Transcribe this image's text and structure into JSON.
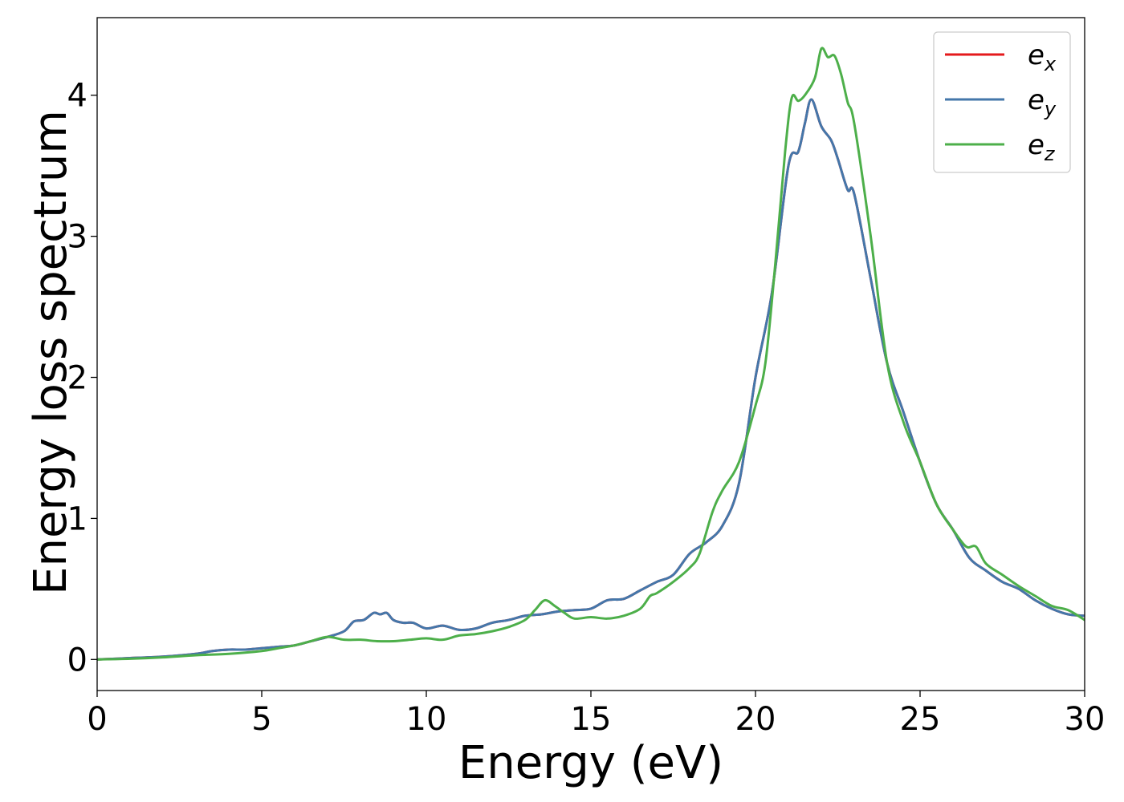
{
  "chart_data": {
    "type": "line",
    "title": "",
    "xlabel": "Energy (eV)",
    "ylabel": "Energy loss spectrum",
    "xlim": [
      0,
      30
    ],
    "ylim": [
      -0.22,
      4.55
    ],
    "xticks": [
      0,
      5,
      10,
      15,
      20,
      25,
      30
    ],
    "xtick_labels": [
      "0",
      "5",
      "10",
      "15",
      "20",
      "25",
      "30"
    ],
    "yticks": [
      0,
      1,
      2,
      3,
      4
    ],
    "ytick_labels": [
      "0",
      "1",
      "2",
      "3",
      "4"
    ],
    "grid": false,
    "legend_position": "top-right",
    "series": [
      {
        "name": "e_x",
        "legend_base": "e",
        "legend_sub": "x",
        "color": "#e41a1c",
        "x": [
          0,
          1,
          2,
          3,
          3.5,
          4,
          4.5,
          5,
          5.5,
          6,
          6.5,
          7,
          7.5,
          7.8,
          8.1,
          8.4,
          8.6,
          8.8,
          9.0,
          9.3,
          9.6,
          10,
          10.5,
          11,
          11.5,
          12,
          12.5,
          13,
          13.5,
          14,
          14.5,
          15,
          15.5,
          16,
          16.5,
          17,
          17.5,
          18,
          18.5,
          19,
          19.5,
          20,
          20.5,
          21,
          21.3,
          21.5,
          21.7,
          22,
          22.3,
          22.5,
          22.8,
          23,
          23.5,
          24,
          24.5,
          25,
          25.5,
          26,
          26.5,
          27,
          27.5,
          28,
          28.5,
          29,
          29.5,
          30
        ],
        "y": [
          0,
          0.01,
          0.02,
          0.04,
          0.06,
          0.07,
          0.07,
          0.08,
          0.09,
          0.1,
          0.13,
          0.16,
          0.2,
          0.27,
          0.28,
          0.33,
          0.32,
          0.33,
          0.28,
          0.26,
          0.26,
          0.22,
          0.24,
          0.21,
          0.22,
          0.26,
          0.28,
          0.31,
          0.32,
          0.34,
          0.35,
          0.36,
          0.42,
          0.43,
          0.49,
          0.55,
          0.6,
          0.75,
          0.83,
          0.95,
          1.25,
          2.0,
          2.6,
          3.5,
          3.6,
          3.8,
          3.97,
          3.78,
          3.68,
          3.55,
          3.33,
          3.3,
          2.7,
          2.1,
          1.75,
          1.4,
          1.1,
          0.92,
          0.72,
          0.63,
          0.55,
          0.5,
          0.42,
          0.36,
          0.32,
          0.31
        ]
      },
      {
        "name": "e_y",
        "legend_base": "e",
        "legend_sub": "y",
        "color": "#4477aa",
        "x": [
          0,
          1,
          2,
          3,
          3.5,
          4,
          4.5,
          5,
          5.5,
          6,
          6.5,
          7,
          7.5,
          7.8,
          8.1,
          8.4,
          8.6,
          8.8,
          9.0,
          9.3,
          9.6,
          10,
          10.5,
          11,
          11.5,
          12,
          12.5,
          13,
          13.5,
          14,
          14.5,
          15,
          15.5,
          16,
          16.5,
          17,
          17.5,
          18,
          18.5,
          19,
          19.5,
          20,
          20.5,
          21,
          21.3,
          21.5,
          21.7,
          22,
          22.3,
          22.5,
          22.8,
          23,
          23.5,
          24,
          24.5,
          25,
          25.5,
          26,
          26.5,
          27,
          27.5,
          28,
          28.5,
          29,
          29.5,
          30
        ],
        "y": [
          0,
          0.01,
          0.02,
          0.04,
          0.06,
          0.07,
          0.07,
          0.08,
          0.09,
          0.1,
          0.13,
          0.16,
          0.2,
          0.27,
          0.28,
          0.33,
          0.32,
          0.33,
          0.28,
          0.26,
          0.26,
          0.22,
          0.24,
          0.21,
          0.22,
          0.26,
          0.28,
          0.31,
          0.32,
          0.34,
          0.35,
          0.36,
          0.42,
          0.43,
          0.49,
          0.55,
          0.6,
          0.75,
          0.83,
          0.95,
          1.25,
          2.0,
          2.6,
          3.5,
          3.6,
          3.8,
          3.97,
          3.78,
          3.68,
          3.55,
          3.33,
          3.3,
          2.7,
          2.1,
          1.75,
          1.4,
          1.1,
          0.92,
          0.72,
          0.63,
          0.55,
          0.5,
          0.42,
          0.36,
          0.32,
          0.31
        ]
      },
      {
        "name": "e_z",
        "legend_base": "e",
        "legend_sub": "z",
        "color": "#4daf4a",
        "x": [
          0,
          1,
          2,
          3,
          4,
          5,
          5.5,
          6,
          6.5,
          7,
          7.5,
          8,
          8.5,
          9,
          9.5,
          10,
          10.5,
          11,
          11.5,
          12,
          12.5,
          13,
          13.3,
          13.6,
          13.9,
          14.2,
          14.5,
          15,
          15.5,
          16,
          16.5,
          16.8,
          17,
          17.5,
          18,
          18.3,
          18.7,
          19,
          19.5,
          20,
          20.3,
          20.6,
          20.9,
          21.1,
          21.3,
          21.5,
          21.8,
          22.0,
          22.2,
          22.4,
          22.6,
          22.8,
          23,
          23.5,
          24,
          24.5,
          25,
          25.5,
          26,
          26.4,
          26.7,
          27,
          27.5,
          28,
          28.5,
          29,
          29.5,
          30
        ],
        "y": [
          0,
          0.005,
          0.015,
          0.03,
          0.04,
          0.06,
          0.08,
          0.1,
          0.13,
          0.16,
          0.14,
          0.14,
          0.13,
          0.13,
          0.14,
          0.15,
          0.14,
          0.17,
          0.18,
          0.2,
          0.23,
          0.28,
          0.35,
          0.42,
          0.38,
          0.33,
          0.29,
          0.3,
          0.29,
          0.31,
          0.36,
          0.45,
          0.47,
          0.55,
          0.65,
          0.75,
          1.05,
          1.2,
          1.4,
          1.8,
          2.1,
          2.8,
          3.6,
          3.98,
          3.96,
          4.0,
          4.12,
          4.33,
          4.27,
          4.28,
          4.15,
          3.95,
          3.8,
          3.0,
          2.1,
          1.68,
          1.4,
          1.1,
          0.92,
          0.8,
          0.8,
          0.68,
          0.6,
          0.52,
          0.45,
          0.38,
          0.35,
          0.28
        ]
      }
    ]
  }
}
